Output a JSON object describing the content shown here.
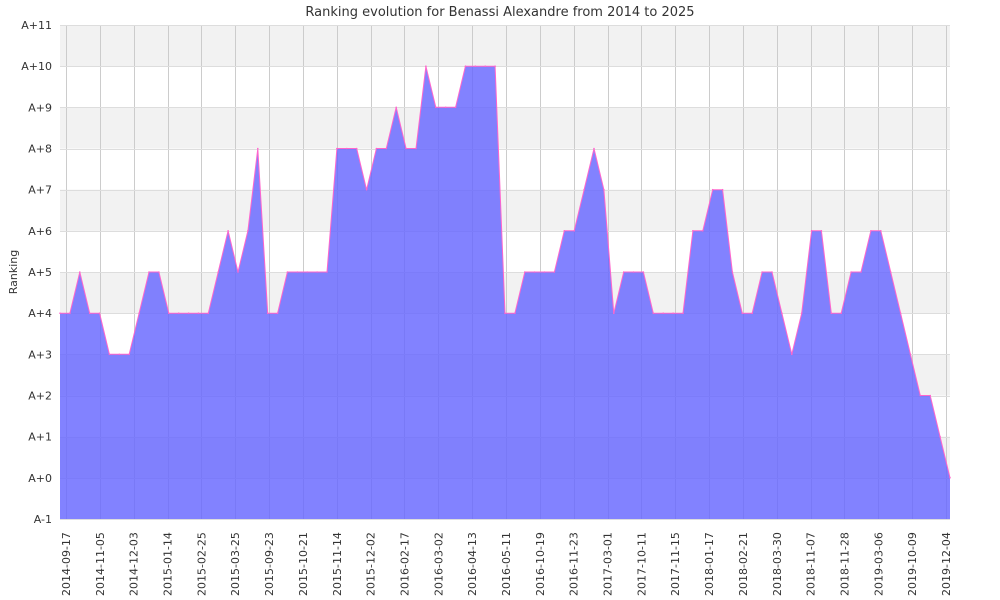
{
  "chart_data": {
    "type": "area",
    "title": "Ranking evolution for Benassi Alexandre from 2014 to 2025",
    "xlabel": "",
    "ylabel": "Ranking",
    "y_ticks": [
      "A-1",
      "A+0",
      "A+1",
      "A+2",
      "A+3",
      "A+4",
      "A+5",
      "A+6",
      "A+7",
      "A+8",
      "A+9",
      "A+10",
      "A+11"
    ],
    "ylim": [
      -1,
      11
    ],
    "x_ticks": [
      "2014-09-17",
      "2014-11-05",
      "2014-12-03",
      "2015-01-14",
      "2015-02-25",
      "2015-03-25",
      "2015-09-23",
      "2015-10-21",
      "2015-11-14",
      "2015-12-02",
      "2016-02-17",
      "2016-03-02",
      "2016-04-13",
      "2016-05-11",
      "2016-10-19",
      "2016-11-23",
      "2017-03-01",
      "2017-10-11",
      "2017-11-15",
      "2018-01-17",
      "2018-02-21",
      "2018-03-30",
      "2018-11-07",
      "2018-11-28",
      "2019-03-06",
      "2019-10-09",
      "2019-12-04"
    ],
    "grid": true,
    "colors": {
      "fill": "#6666ff",
      "line": "#ff66cc",
      "band": "#f2f2f2",
      "grid": "#cccccc"
    },
    "series": [
      {
        "values": [
          4,
          4,
          5,
          4,
          4,
          3,
          3,
          3,
          4,
          5,
          5,
          4,
          4,
          4,
          4,
          4,
          5,
          6,
          5,
          6,
          8,
          4,
          4,
          5,
          5,
          5,
          5,
          5,
          8,
          8,
          8,
          7,
          8,
          8,
          9,
          8,
          8,
          10,
          9,
          9,
          9,
          10,
          10,
          10,
          10,
          4,
          4,
          5,
          5,
          5,
          5,
          6,
          6,
          7,
          8,
          7,
          4,
          5,
          5,
          5,
          4,
          4,
          4,
          4,
          6,
          6,
          7,
          7,
          5,
          4,
          4,
          5,
          5,
          4,
          3,
          4,
          6,
          6,
          4,
          4,
          5,
          5,
          6,
          6,
          5,
          4,
          3,
          2,
          2,
          1,
          0
        ]
      }
    ]
  }
}
